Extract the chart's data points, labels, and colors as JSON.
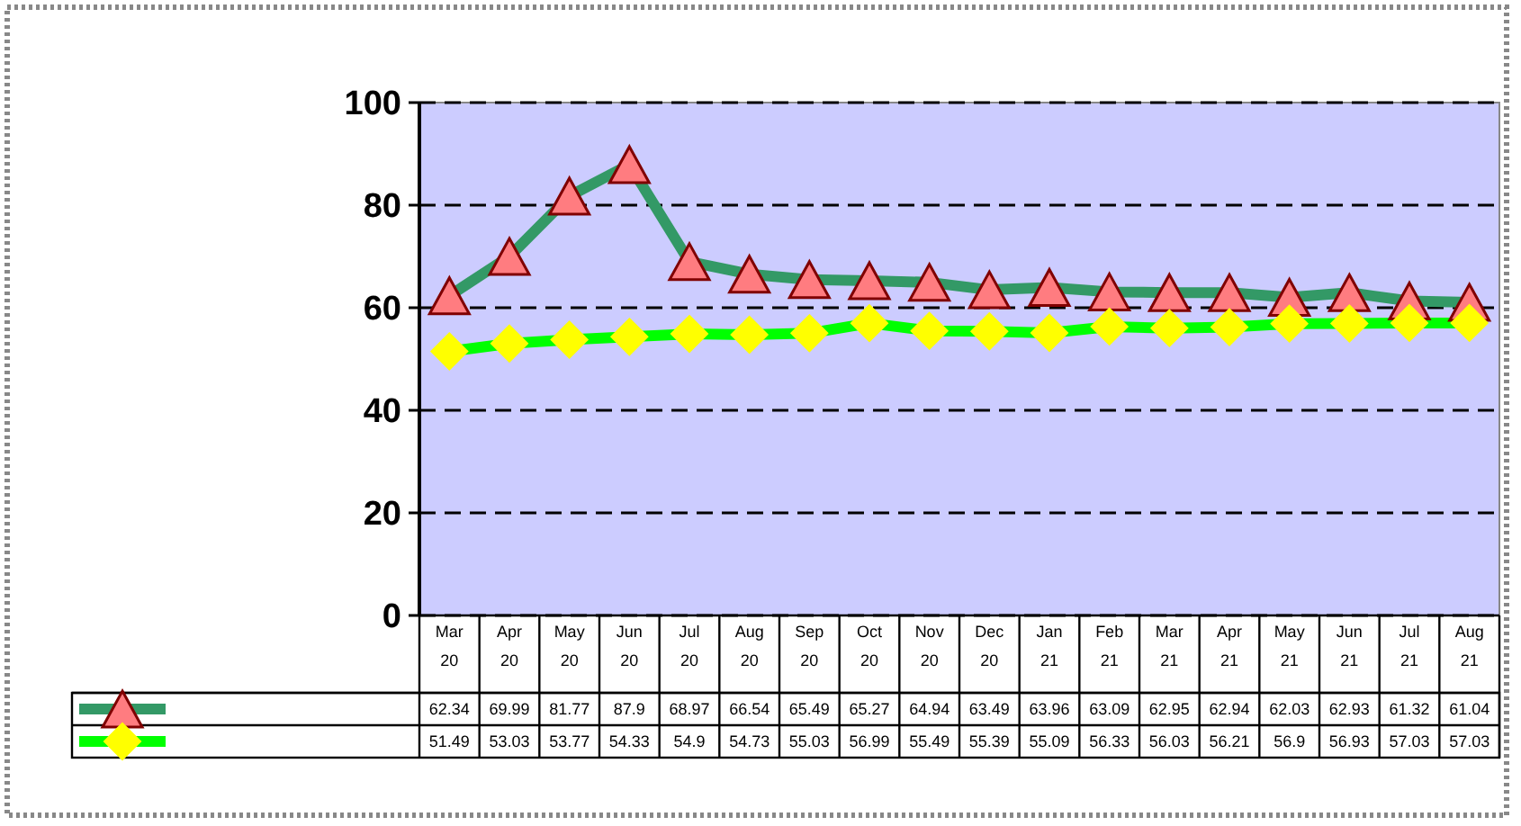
{
  "chart_data": {
    "type": "line",
    "categories": [
      "Mar 20",
      "Apr 20",
      "May 20",
      "Jun 20",
      "Jul 20",
      "Aug 20",
      "Sep 20",
      "Oct 20",
      "Nov 20",
      "Dec 20",
      "Jan 21",
      "Feb 21",
      "Mar 21",
      "Apr 21",
      "May 21",
      "Jun 21",
      "Jul 21",
      "Aug 21"
    ],
    "series": [
      {
        "color": "#339966",
        "marker": "triangle",
        "values": [
          62.34,
          69.99,
          81.77,
          87.9,
          68.97,
          66.54,
          65.49,
          65.27,
          64.94,
          63.49,
          63.96,
          63.09,
          62.95,
          62.94,
          62.03,
          62.93,
          61.32,
          61.04
        ]
      },
      {
        "color": "#00ff00",
        "marker": "diamond",
        "values": [
          51.49,
          53.03,
          53.77,
          54.33,
          54.9,
          54.73,
          55.03,
          56.99,
          55.49,
          55.39,
          55.09,
          56.33,
          56.03,
          56.21,
          56.9,
          56.93,
          57.03,
          57.03
        ]
      }
    ],
    "ylim": [
      0,
      100
    ],
    "yticks": [
      0,
      20,
      40,
      60,
      80,
      100
    ],
    "grid": "y",
    "data_labels": true
  }
}
